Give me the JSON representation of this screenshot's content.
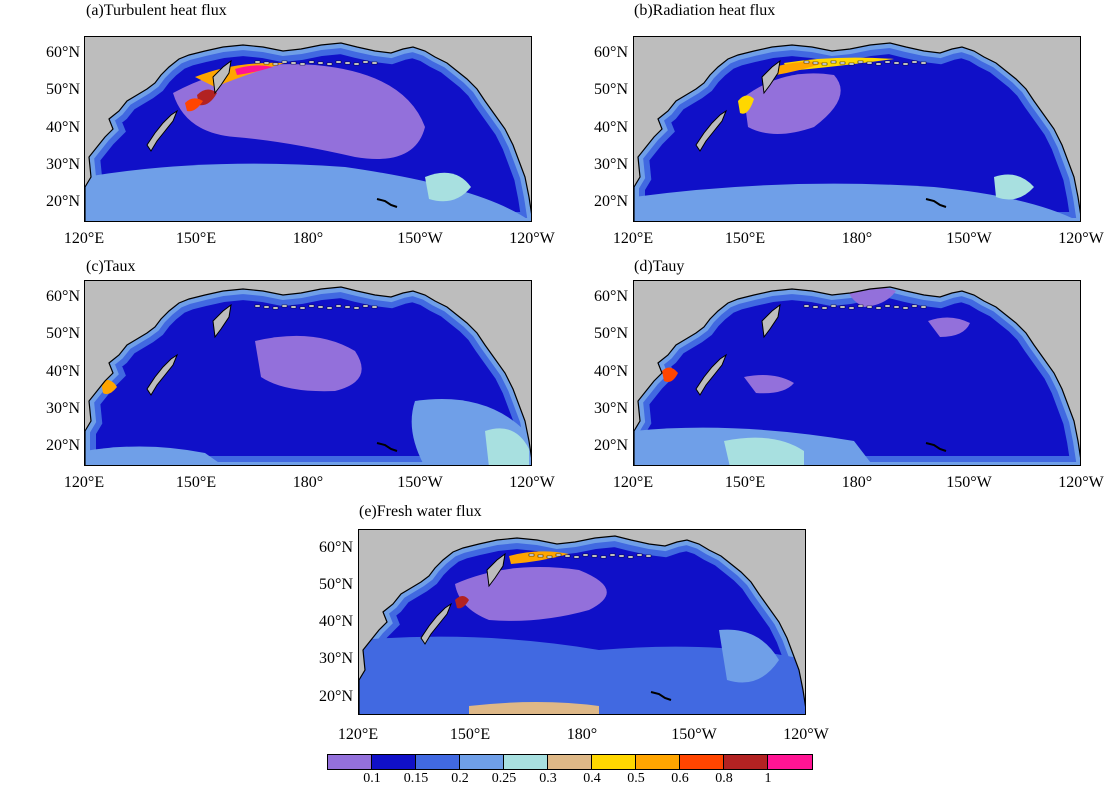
{
  "panels": [
    {
      "id": "a",
      "title": "(a)Turbulent heat flux"
    },
    {
      "id": "b",
      "title": "(b)Radiation heat flux"
    },
    {
      "id": "c",
      "title": "(c)Taux"
    },
    {
      "id": "d",
      "title": "(d)Tauy"
    },
    {
      "id": "e",
      "title": "(e)Fresh water flux"
    }
  ],
  "axes": {
    "lat_labels": [
      "60°N",
      "50°N",
      "40°N",
      "30°N",
      "20°N"
    ],
    "lon_labels": [
      "120°E",
      "150°E",
      "180°",
      "150°W",
      "120°W"
    ]
  },
  "colorbar": {
    "colors": [
      "#9370db",
      "#1010c8",
      "#4169e1",
      "#6f9fe8",
      "#a8e0e0",
      "#deb887",
      "#ffd700",
      "#ffa500",
      "#ff4500",
      "#b22222",
      "#ff1493"
    ],
    "labels": [
      "0.1",
      "0.15",
      "0.2",
      "0.25",
      "0.3",
      "0.4",
      "0.5",
      "0.6",
      "0.8",
      "1"
    ]
  },
  "colors": {
    "land": "#bdbdbd",
    "coast": "#000000"
  }
}
